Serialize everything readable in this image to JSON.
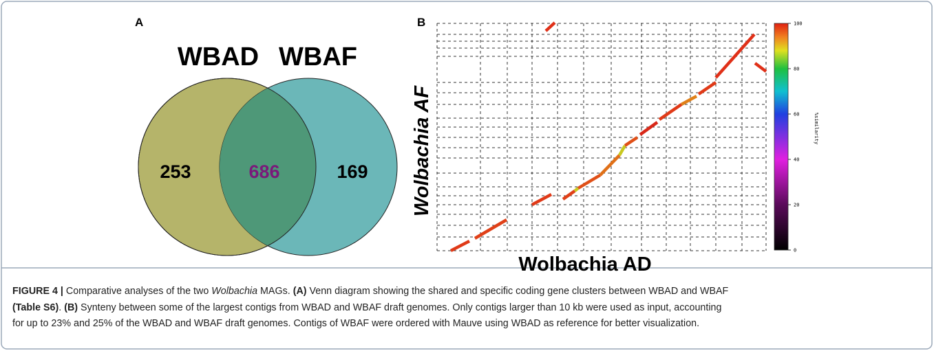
{
  "panel_a": {
    "label": "A",
    "sets": [
      "WBAD",
      "WBAF"
    ],
    "left_only": "253",
    "shared": "686",
    "right_only": "169"
  },
  "panel_b": {
    "label": "B",
    "x_label": "Wolbachia AD",
    "y_label": "Wolbachia AF",
    "colorbar_label": "%similarity",
    "colorbar_ticks": [
      "0",
      "20",
      "40",
      "60",
      "80",
      "100"
    ]
  },
  "caption": {
    "line1": [
      "FIGURE 4 |",
      " Comparative analyses of the two ",
      "Wolbachia",
      " MAGs. ",
      "(A)",
      " Venn diagram showing the shared and specific coding gene clusters between WBAD and WBAF"
    ],
    "line2": [
      "(Table S6)",
      ". ",
      "(B)",
      " Synteny between some of the largest contigs from WBAD and WBAF draft genomes. Only contigs larger than 10 kb were used as input, accounting"
    ],
    "line3": [
      "for up to 23% and 25% of the WBAD and WBAF draft genomes. Contigs of WBAF were ordered with Mauve using WBAD as reference for better visualization."
    ]
  }
}
